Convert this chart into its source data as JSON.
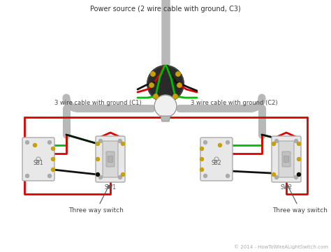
{
  "bg_color": "#ffffff",
  "title": "Power source (2 wire cable with ground, C3)",
  "title_color": "#333333",
  "title_fontsize": 7.0,
  "label_c1": "3 wire cable with ground (C1)",
  "label_c2": "3 wire cable with ground (C2)",
  "label_sw1": "SW1",
  "label_sw2": "SW2",
  "label_sb1": "SB1",
  "label_sb2": "SB2",
  "label_three_way1": "Three way switch",
  "label_three_way2": "Three way switch",
  "copyright": "© 2014 - HowToWireALightSwitch.com",
  "wire_red": "#dd0000",
  "wire_green": "#00bb00",
  "wire_black": "#111111",
  "conduit_color": "#b8b8b8",
  "conduit_lw": 8,
  "switch_body": "#e8e8e8",
  "switch_border": "#aaaaaa",
  "terminal_color": "#c8a000",
  "junction_color": "#111111",
  "label_color": "#444444",
  "copyright_color": "#aaaaaa"
}
